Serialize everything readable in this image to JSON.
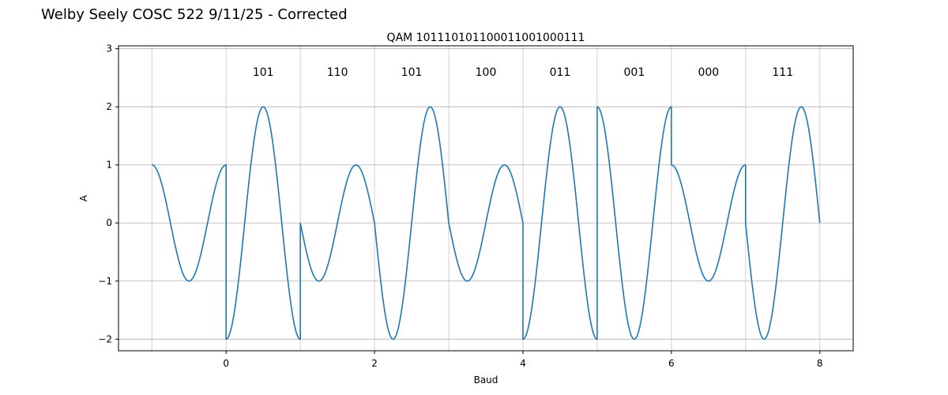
{
  "figure": {
    "suptitle": "Welby Seely COSC 522 9/11/25 - Corrected"
  },
  "chart_data": {
    "type": "line",
    "title": "QAM 101110101100011001000111",
    "xlabel": "Baud",
    "ylabel": "A",
    "xlim": [
      -1.45,
      8.45
    ],
    "ylim": [
      -2.2,
      3.05
    ],
    "xticks": [
      0,
      2,
      4,
      6,
      8
    ],
    "xtick_labels": [
      "0",
      "2",
      "4",
      "6",
      "8"
    ],
    "yticks": [
      -2,
      -1,
      0,
      1,
      2,
      3
    ],
    "ytick_labels": [
      "−2",
      "−1",
      "0",
      "1",
      "2",
      "3"
    ],
    "grid": true,
    "color": "#1f77b4",
    "series": [
      {
        "segments": [
          {
            "t0": -1,
            "t1": 0,
            "amplitude": 1,
            "phase_deg": 0
          },
          {
            "t0": 0,
            "t1": 1,
            "amplitude": 2,
            "phase_deg": 180
          },
          {
            "t0": 1,
            "t1": 2,
            "amplitude": 1,
            "phase_deg": 90
          },
          {
            "t0": 2,
            "t1": 3,
            "amplitude": 2,
            "phase_deg": 90
          },
          {
            "t0": 3,
            "t1": 4,
            "amplitude": 1,
            "phase_deg": 90
          },
          {
            "t0": 4,
            "t1": 5,
            "amplitude": 2,
            "phase_deg": 180
          },
          {
            "t0": 5,
            "t1": 6,
            "amplitude": 2,
            "phase_deg": 0
          },
          {
            "t0": 6,
            "t1": 7,
            "amplitude": 1,
            "phase_deg": 0
          },
          {
            "t0": 7,
            "t1": 8,
            "amplitude": 2,
            "phase_deg": 90
          }
        ]
      }
    ],
    "annotations": [
      {
        "text": "101",
        "x": 0.5,
        "y": 2.6
      },
      {
        "text": "110",
        "x": 1.5,
        "y": 2.6
      },
      {
        "text": "101",
        "x": 2.5,
        "y": 2.6
      },
      {
        "text": "100",
        "x": 3.5,
        "y": 2.6
      },
      {
        "text": "011",
        "x": 4.5,
        "y": 2.6
      },
      {
        "text": "001",
        "x": 5.5,
        "y": 2.6
      },
      {
        "text": "000",
        "x": 6.5,
        "y": 2.6
      },
      {
        "text": "111",
        "x": 7.5,
        "y": 2.6
      }
    ]
  }
}
